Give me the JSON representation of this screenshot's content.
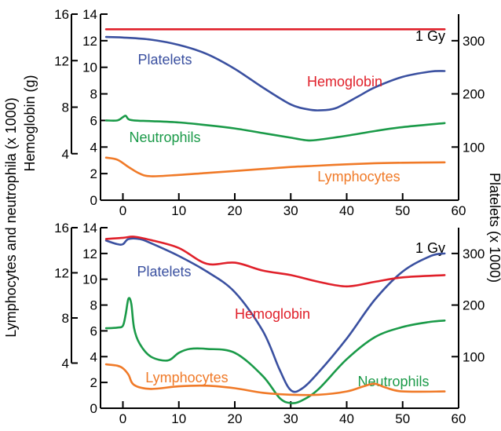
{
  "colors": {
    "Platelets": "#3a50a0",
    "Hemoglobin": "#e0202a",
    "Neutrophils": "#1a9a48",
    "Lymphocytes": "#f07a28"
  },
  "axis_titles": {
    "left_outer": "Lymphocytes and neutrophila (x 1000)",
    "left_inner": "Hemoglobin (g)",
    "right": "Platelets (x 1000)"
  },
  "chart_data": [
    {
      "type": "line",
      "dose_label": "1 Gy",
      "xlim": [
        -4,
        60
      ],
      "x_ticks": [
        "0",
        "10",
        "20",
        "30",
        "40",
        "50",
        "60"
      ],
      "ylim_left": [
        0,
        14
      ],
      "left_ticks": [
        "0",
        "2",
        "4",
        "6",
        "8",
        "10",
        "12",
        "14"
      ],
      "hemoglobin_ylim": [
        0,
        16
      ],
      "hemoglobin_ticks": [
        "4",
        "8",
        "12",
        "16"
      ],
      "ylim_right": [
        0,
        350
      ],
      "right_ticks": [
        "100",
        "200",
        "300"
      ],
      "series": [
        {
          "name": "Platelets",
          "axis": "right",
          "x": [
            -3,
            0,
            5,
            10,
            15,
            20,
            25,
            30,
            33,
            35,
            38,
            42,
            45,
            50,
            55,
            57.5
          ],
          "y": [
            307,
            306,
            302,
            292,
            275,
            247,
            212,
            180,
            171,
            169,
            173,
            195,
            212,
            232,
            242,
            243
          ]
        },
        {
          "name": "Hemoglobin",
          "axis": "left_inner",
          "x": [
            -3,
            57.5
          ],
          "y": [
            14.7,
            14.7
          ]
        },
        {
          "name": "Neutrophils",
          "axis": "left",
          "x": [
            -3,
            -1,
            0,
            0.5,
            1,
            2,
            5,
            10,
            15,
            20,
            25,
            30,
            33,
            35,
            40,
            45,
            50,
            57.5
          ],
          "y": [
            6.0,
            6.0,
            6.25,
            6.35,
            6.1,
            6.0,
            5.95,
            5.85,
            5.65,
            5.4,
            5.05,
            4.7,
            4.5,
            4.55,
            4.85,
            5.2,
            5.5,
            5.8
          ]
        },
        {
          "name": "Lymphocytes",
          "axis": "left",
          "x": [
            -3,
            -1,
            1,
            3,
            5,
            10,
            15,
            20,
            25,
            30,
            35,
            40,
            45,
            50,
            57.5
          ],
          "y": [
            3.2,
            3.05,
            2.5,
            2.0,
            1.8,
            1.9,
            2.05,
            2.2,
            2.35,
            2.5,
            2.6,
            2.7,
            2.78,
            2.82,
            2.85
          ]
        }
      ]
    },
    {
      "type": "line",
      "dose_label": "1 Gy",
      "xlim": [
        -4,
        60
      ],
      "x_ticks": [
        "0",
        "10",
        "20",
        "30",
        "40",
        "50",
        "60"
      ],
      "ylim_left": [
        0,
        14
      ],
      "left_ticks": [
        "0",
        "2",
        "4",
        "6",
        "8",
        "10",
        "12",
        "14"
      ],
      "hemoglobin_ylim": [
        0,
        16
      ],
      "hemoglobin_ticks": [
        "4",
        "8",
        "12",
        "16"
      ],
      "ylim_right": [
        0,
        350
      ],
      "right_ticks": [
        "100",
        "200",
        "300"
      ],
      "series": [
        {
          "name": "Platelets",
          "axis": "right",
          "x": [
            -3,
            -1,
            0,
            1,
            3,
            5,
            10,
            15,
            20,
            25,
            28,
            30,
            32,
            35,
            40,
            45,
            50,
            55,
            57.5
          ],
          "y": [
            325,
            318,
            318,
            328,
            328,
            320,
            295,
            265,
            225,
            150,
            75,
            35,
            38,
            70,
            135,
            210,
            265,
            295,
            300
          ]
        },
        {
          "name": "Hemoglobin",
          "axis": "left_inner",
          "x": [
            -3,
            0,
            2,
            5,
            10,
            15,
            20,
            25,
            30,
            35,
            40,
            45,
            50,
            57.5
          ],
          "y": [
            15.0,
            15.1,
            15.2,
            14.9,
            14.2,
            12.8,
            12.9,
            12.2,
            11.8,
            11.2,
            10.8,
            11.2,
            11.6,
            11.8
          ]
        },
        {
          "name": "Neutrophils",
          "axis": "left",
          "x": [
            -3,
            -1,
            0,
            0.5,
            1,
            1.5,
            2,
            3,
            5,
            8,
            10,
            12,
            15,
            20,
            25,
            28,
            30,
            32,
            35,
            40,
            45,
            50,
            55,
            57.5
          ],
          "y": [
            6.2,
            6.25,
            6.4,
            7.3,
            8.5,
            8.1,
            6.2,
            5.0,
            4.0,
            3.7,
            4.3,
            4.6,
            4.6,
            4.3,
            2.5,
            0.8,
            0.4,
            0.6,
            1.5,
            3.8,
            5.5,
            6.3,
            6.7,
            6.8
          ]
        },
        {
          "name": "Lymphocytes",
          "axis": "left",
          "x": [
            -3,
            -1,
            0,
            1,
            2,
            5,
            10,
            15,
            20,
            25,
            30,
            35,
            40,
            43,
            45,
            47,
            50,
            57.5
          ],
          "y": [
            3.4,
            3.3,
            3.1,
            2.6,
            1.8,
            1.5,
            1.7,
            1.75,
            1.55,
            1.2,
            1.05,
            1.05,
            1.3,
            1.7,
            1.9,
            1.6,
            1.3,
            1.3
          ]
        }
      ]
    }
  ]
}
